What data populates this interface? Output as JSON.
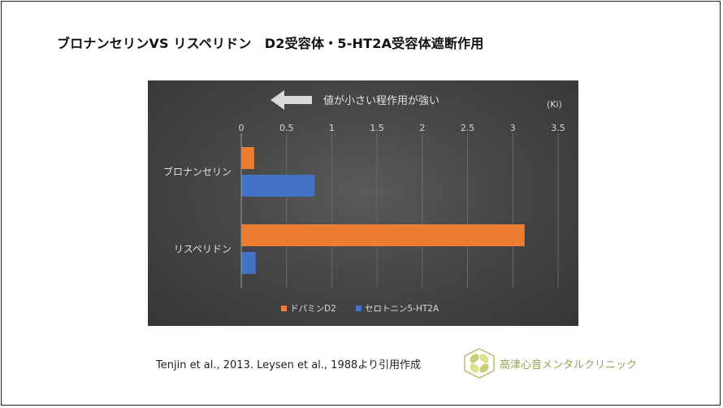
{
  "slide": {
    "title": "ブロナンセリンVS リスペリドン　D2受容体・5-HT2A受容体遮断作用",
    "citation": "Tenjin et al., 2013.  Leysen et al., 1988より引用作成",
    "clinic_name": "高津心音メンタルクリニック",
    "logo_icon": "clover-logo-icon"
  },
  "chart_data": {
    "type": "bar",
    "orientation": "horizontal",
    "categories": [
      "ブロナンセリン",
      "リスペリドン"
    ],
    "series": [
      {
        "name": "ドパミンD2",
        "color": "#ED7D31",
        "values": [
          0.142,
          3.13
        ]
      },
      {
        "name": "セロトニン5-HT2A",
        "color": "#4472C4",
        "values": [
          0.812,
          0.16
        ]
      }
    ],
    "xlim": [
      0,
      3.5
    ],
    "xticks": [
      "0",
      "0.5",
      "1",
      "1.5",
      "2",
      "2.5",
      "3",
      "3.5"
    ],
    "unit_label": "(Ki)",
    "annotation": "値が小さい程作用が強い",
    "arrow_icon": "left-arrow-icon",
    "legend_position": "bottom",
    "grid": true
  }
}
